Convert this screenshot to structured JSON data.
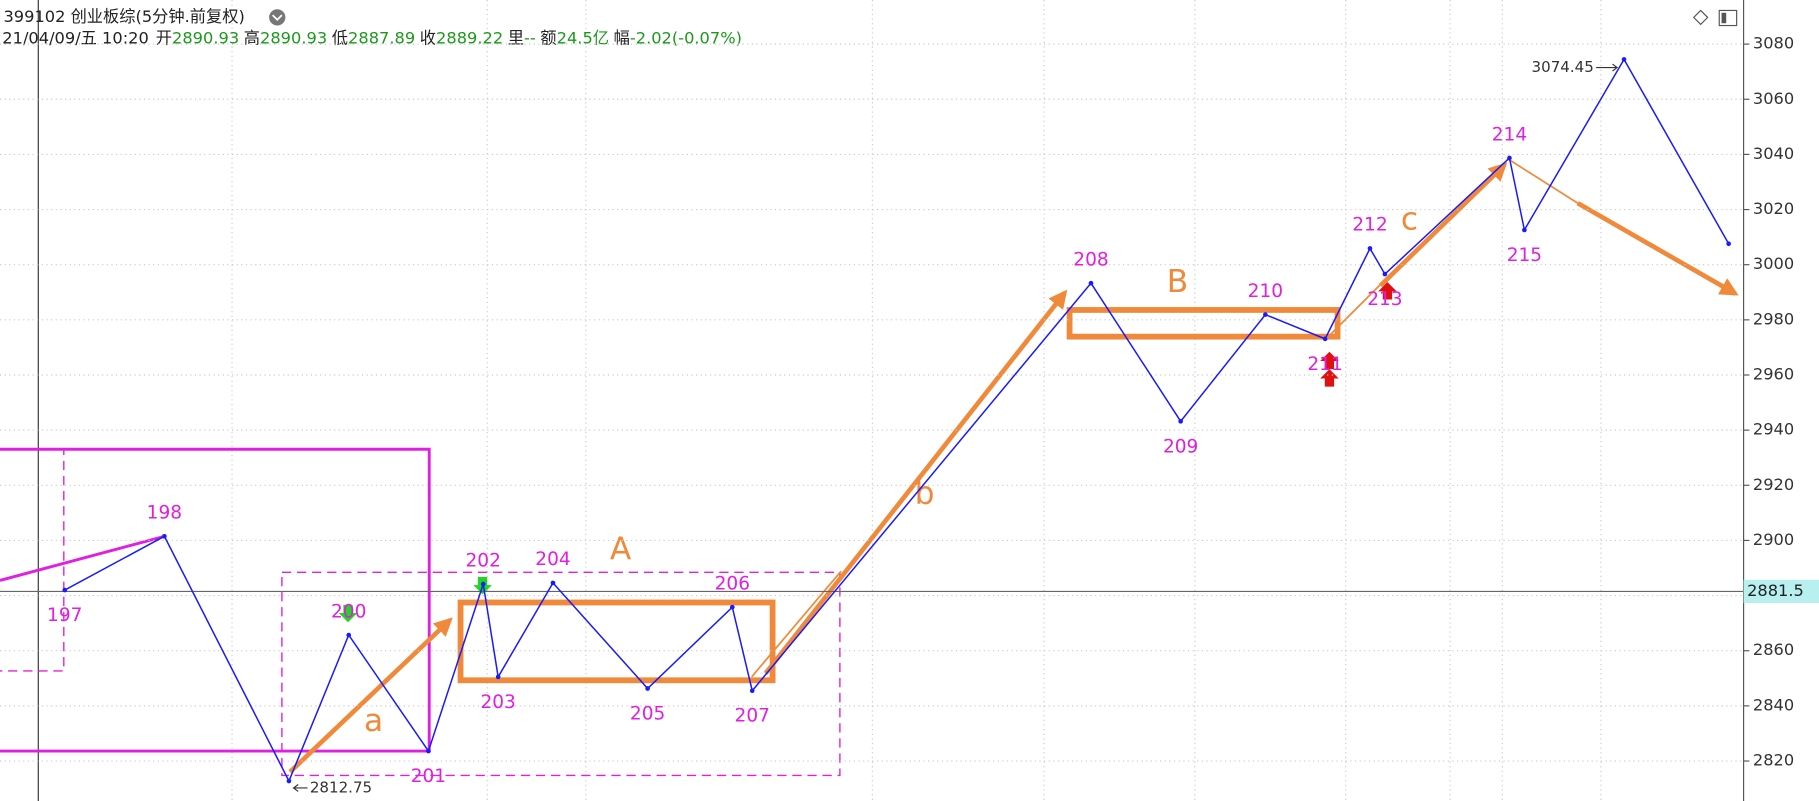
{
  "header": {
    "title": "399102 创业板综(5分钟.前复权)",
    "date": "21/04/09/五 10:20",
    "fields": [
      {
        "name": "开",
        "value": "2890.93"
      },
      {
        "name": "高",
        "value": "2890.93"
      },
      {
        "name": "低",
        "value": "2887.89"
      },
      {
        "name": "收",
        "value": "2889.22"
      },
      {
        "name": "里",
        "value": "--"
      },
      {
        "name": "额",
        "value": "24.5亿"
      },
      {
        "name": "幅",
        "value": "-2.02(-0.07%)"
      }
    ]
  },
  "annotations": [
    "A",
    "B",
    "a",
    "b",
    "c"
  ],
  "chart_data": {
    "type": "line",
    "color": "#1a1aff",
    "x": [
      13,
      33,
      58,
      70,
      86,
      97,
      100,
      111,
      130,
      147,
      151,
      219,
      237,
      254,
      266,
      275,
      278,
      303,
      306,
      326,
      347
    ],
    "values": [
      2882,
      2901.5,
      2812.75,
      2865.7,
      2823.6,
      2884.2,
      2850.5,
      2884.6,
      2846.3,
      2875.8,
      2845.5,
      2993.3,
      2943.2,
      2981.9,
      2973.1,
      3005.9,
      2996.6,
      3038.7,
      3012.6,
      3074.45,
      3007.6
    ],
    "labels": [
      "197",
      "198",
      "2812.75",
      "200",
      "201",
      "202",
      "203",
      "204",
      "205",
      "206",
      "207",
      "208",
      "209",
      "210",
      "211",
      "212",
      "213",
      "214",
      "215",
      "3074.45",
      null
    ],
    "xlim": [
      0,
      350
    ],
    "ylim": [
      2805.5,
      3096
    ],
    "yticks": [
      2820,
      2840,
      2860,
      2880,
      2900,
      2920,
      2940,
      2960,
      2980,
      3000,
      3020,
      3040,
      3060,
      3080
    ],
    "grid": true,
    "current_price": 2881.5
  }
}
